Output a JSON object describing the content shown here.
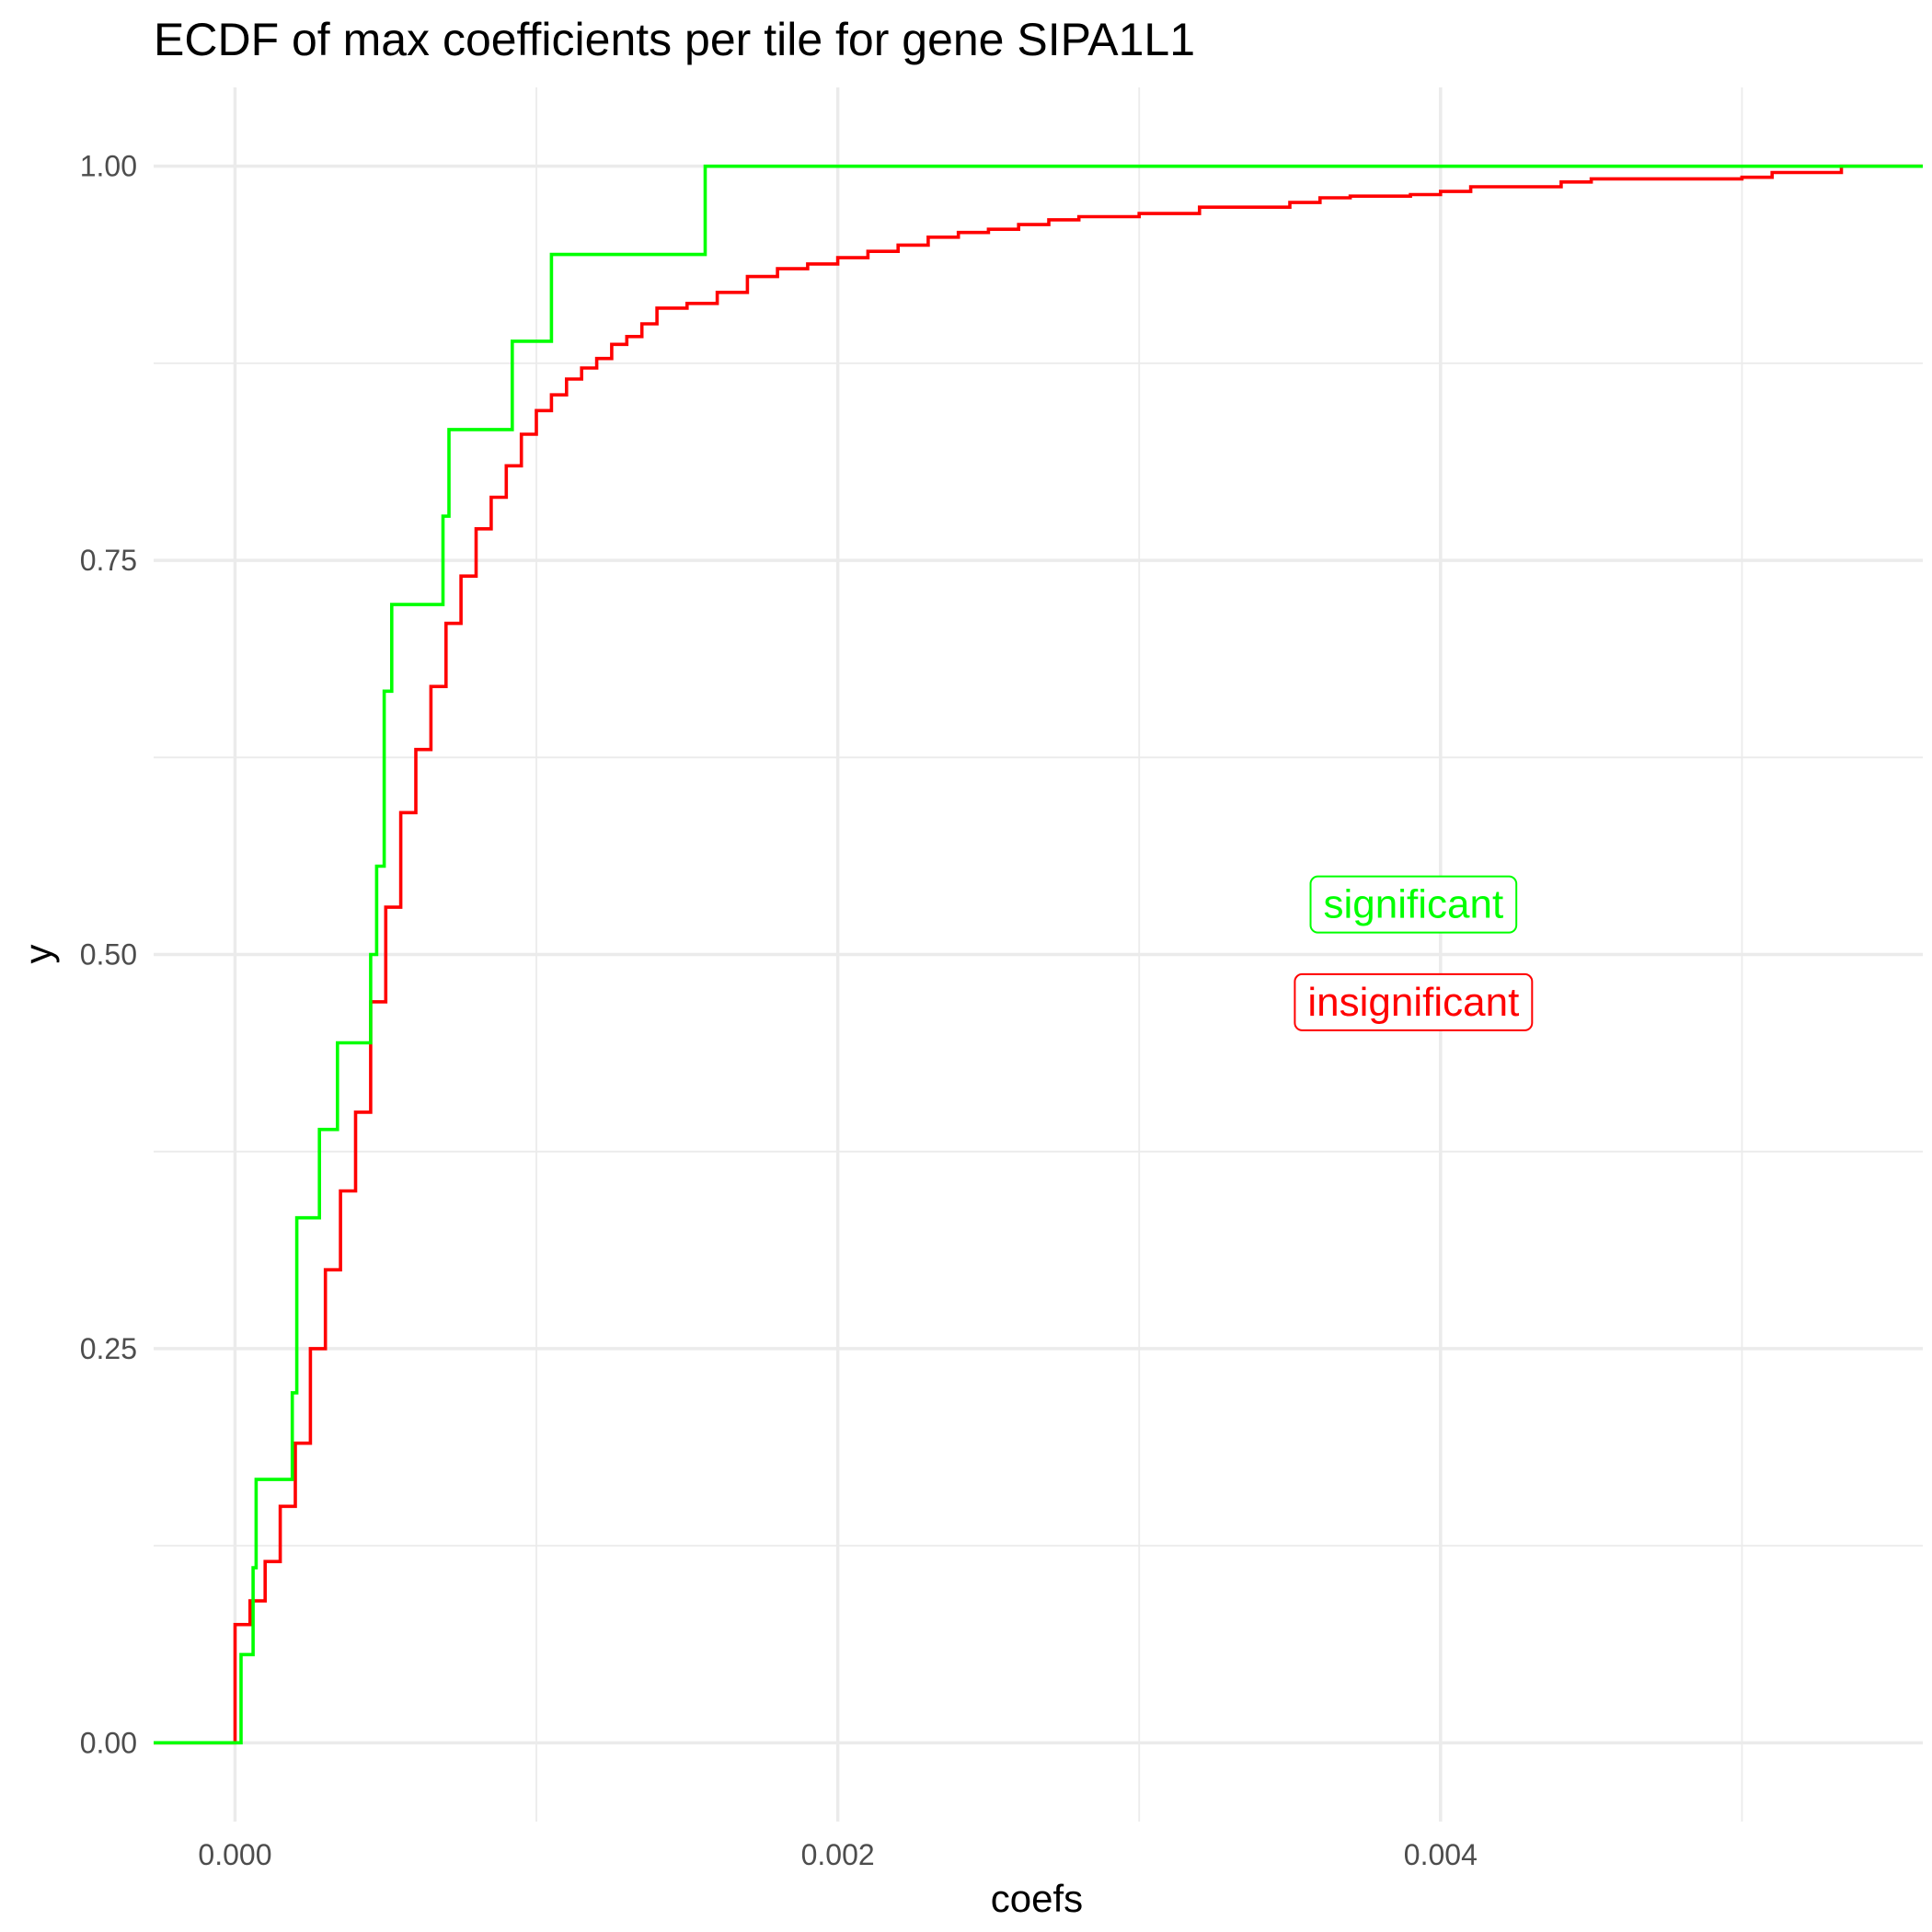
{
  "chart_data": {
    "type": "line",
    "subtype": "ecdf-step",
    "title": "ECDF of max coefficients per tile for gene SIPA1L1",
    "xlabel": "coefs",
    "ylabel": "y",
    "xlim": [
      -0.00027,
      0.0056
    ],
    "ylim": [
      -0.05,
      1.05
    ],
    "x_ticks": [
      0,
      0.002,
      0.004
    ],
    "x_tick_labels": [
      "0.000",
      "0.002",
      "0.004"
    ],
    "y_ticks": [
      0,
      0.25,
      0.5,
      0.75,
      1
    ],
    "y_tick_labels": [
      "0.00",
      "0.25",
      "0.50",
      "0.75",
      "1.00"
    ],
    "grid": true,
    "legend": "none",
    "series": [
      {
        "name": "significant",
        "color": "#00ff00",
        "points": [
          [
            2e-05,
            0.0
          ],
          [
            2e-05,
            0.056
          ],
          [
            6e-05,
            0.056
          ],
          [
            6e-05,
            0.111
          ],
          [
            7e-05,
            0.111
          ],
          [
            7e-05,
            0.167
          ],
          [
            0.00019,
            0.167
          ],
          [
            0.00019,
            0.222
          ],
          [
            0.000205,
            0.222
          ],
          [
            0.000205,
            0.333
          ],
          [
            0.00028,
            0.333
          ],
          [
            0.00028,
            0.389
          ],
          [
            0.00034,
            0.389
          ],
          [
            0.00034,
            0.444
          ],
          [
            0.00045,
            0.444
          ],
          [
            0.00045,
            0.5
          ],
          [
            0.00047,
            0.5
          ],
          [
            0.00047,
            0.556
          ],
          [
            0.000495,
            0.556
          ],
          [
            0.000495,
            0.667
          ],
          [
            0.00052,
            0.667
          ],
          [
            0.00052,
            0.722
          ],
          [
            0.00069,
            0.722
          ],
          [
            0.00069,
            0.778
          ],
          [
            0.00071,
            0.778
          ],
          [
            0.00071,
            0.833
          ],
          [
            0.00092,
            0.833
          ],
          [
            0.00092,
            0.889
          ],
          [
            0.00105,
            0.889
          ],
          [
            0.00105,
            0.944
          ],
          [
            0.00156,
            0.944
          ],
          [
            0.00156,
            1.0
          ],
          [
            0.0056,
            1.0
          ]
        ]
      },
      {
        "name": "insignificant",
        "color": "#ff0000",
        "points": [
          [
            0.0,
            0.0
          ],
          [
            0.0,
            0.075
          ],
          [
            5e-05,
            0.09
          ],
          [
            0.0001,
            0.115
          ],
          [
            0.00015,
            0.15
          ],
          [
            0.0002,
            0.19
          ],
          [
            0.00025,
            0.25
          ],
          [
            0.0003,
            0.3
          ],
          [
            0.00035,
            0.35
          ],
          [
            0.0004,
            0.4
          ],
          [
            0.00045,
            0.47
          ],
          [
            0.0005,
            0.53
          ],
          [
            0.00055,
            0.59
          ],
          [
            0.0006,
            0.63
          ],
          [
            0.00065,
            0.67
          ],
          [
            0.0007,
            0.71
          ],
          [
            0.00075,
            0.74
          ],
          [
            0.0008,
            0.77
          ],
          [
            0.00085,
            0.79
          ],
          [
            0.0009,
            0.81
          ],
          [
            0.00095,
            0.83
          ],
          [
            0.001,
            0.845
          ],
          [
            0.00105,
            0.855
          ],
          [
            0.0011,
            0.865
          ],
          [
            0.00115,
            0.872
          ],
          [
            0.0012,
            0.878
          ],
          [
            0.00125,
            0.887
          ],
          [
            0.0013,
            0.892
          ],
          [
            0.00135,
            0.9
          ],
          [
            0.0014,
            0.91
          ],
          [
            0.0015,
            0.913
          ],
          [
            0.0016,
            0.92
          ],
          [
            0.0017,
            0.93
          ],
          [
            0.0018,
            0.935
          ],
          [
            0.0019,
            0.938
          ],
          [
            0.002,
            0.942
          ],
          [
            0.0021,
            0.946
          ],
          [
            0.0022,
            0.95
          ],
          [
            0.0023,
            0.955
          ],
          [
            0.0024,
            0.958
          ],
          [
            0.0025,
            0.96
          ],
          [
            0.0026,
            0.963
          ],
          [
            0.0027,
            0.966
          ],
          [
            0.0028,
            0.968
          ],
          [
            0.003,
            0.97
          ],
          [
            0.0032,
            0.974
          ],
          [
            0.0035,
            0.977
          ],
          [
            0.0036,
            0.98
          ],
          [
            0.0037,
            0.981
          ],
          [
            0.0039,
            0.982
          ],
          [
            0.004,
            0.984
          ],
          [
            0.0041,
            0.987
          ],
          [
            0.0044,
            0.99
          ],
          [
            0.0045,
            0.992
          ],
          [
            0.005,
            0.993
          ],
          [
            0.0051,
            0.996
          ],
          [
            0.00533,
            0.997
          ],
          [
            0.00533,
            1.0
          ],
          [
            0.0056,
            1.0
          ]
        ]
      }
    ],
    "annotations": [
      {
        "text": "significant",
        "x": 0.00391,
        "y": 0.532,
        "color": "#00ff00"
      },
      {
        "text": "insignificant",
        "x": 0.00391,
        "y": 0.47,
        "color": "#ff0000"
      }
    ]
  }
}
